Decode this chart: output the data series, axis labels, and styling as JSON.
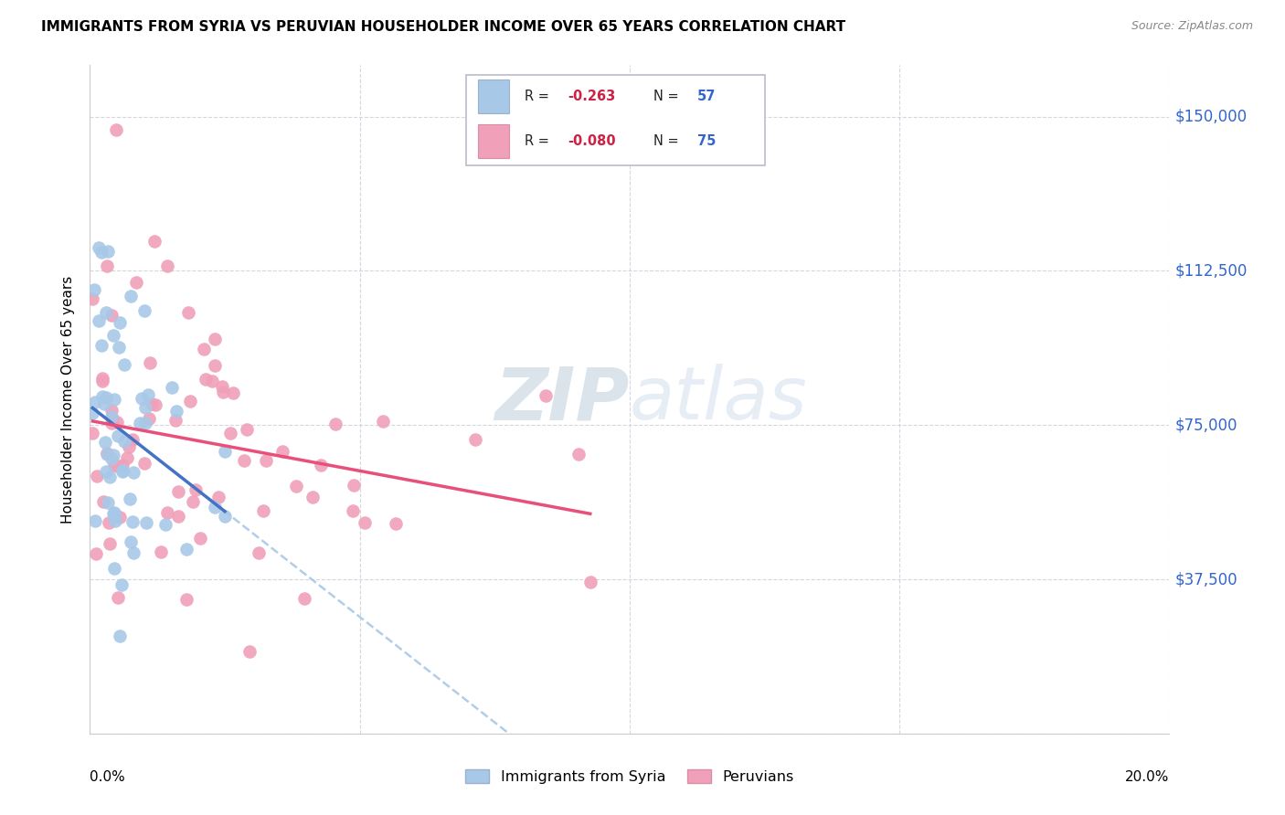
{
  "title": "IMMIGRANTS FROM SYRIA VS PERUVIAN HOUSEHOLDER INCOME OVER 65 YEARS CORRELATION CHART",
  "source": "Source: ZipAtlas.com",
  "ylabel": "Householder Income Over 65 years",
  "xlim": [
    0.0,
    0.2
  ],
  "ylim": [
    0,
    162500
  ],
  "yticks": [
    0,
    37500,
    75000,
    112500,
    150000
  ],
  "ytick_labels": [
    "",
    "$37,500",
    "$75,000",
    "$112,500",
    "$150,000"
  ],
  "xticks": [
    0.0,
    0.05,
    0.1,
    0.15,
    0.2
  ],
  "legend_labels": [
    "Immigrants from Syria",
    "Peruvians"
  ],
  "R_syria": -0.263,
  "N_syria": 57,
  "R_peru": -0.08,
  "N_peru": 75,
  "color_syria": "#a8c8e8",
  "color_peru": "#f0a0b8",
  "line_color_syria_solid": "#4472c4",
  "line_color_syria_dash": "#a8c8e8",
  "line_color_peru": "#e8507a",
  "watermark_color": "#d0dce8",
  "grid_color": "#ccccdd",
  "title_fontsize": 11,
  "source_fontsize": 9,
  "ylabel_fontsize": 11
}
